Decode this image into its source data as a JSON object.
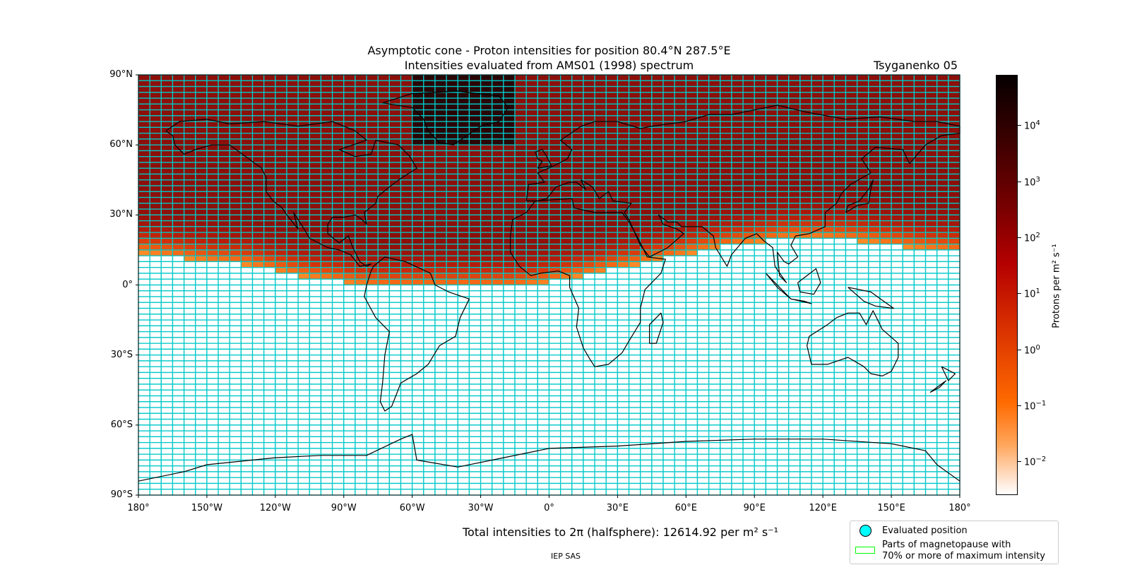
{
  "title_line1": "Asymptotic cone - Proton intensities for position 80.4°N 287.5°E",
  "title_line2": "Intensities evaluated from AMS01 (1998) spectrum",
  "model": "Tsyganenko 05",
  "lat_labels": [
    "90°N",
    "60°N",
    "30°N",
    "0°",
    "30°S",
    "60°S",
    "90°S"
  ],
  "lon_labels": [
    "180°",
    "150°W",
    "120°W",
    "90°W",
    "60°W",
    "30°W",
    "0°",
    "30°E",
    "60°E",
    "90°E",
    "120°E",
    "150°E",
    "180°"
  ],
  "colorbar": {
    "title": "Protons per m² s⁻¹",
    "tick_labels": [
      "10^4",
      "10^3",
      "10^2",
      "10^1",
      "10^0",
      "10^-1",
      "10^-2"
    ],
    "scale": "log",
    "colormap": [
      "#060000",
      "#7a0000",
      "#d83000",
      "#ff6a00",
      "#ffa55a",
      "#ffffff"
    ]
  },
  "total_intensity": {
    "prefix": "Total intensities to 2π (halfsphere): ",
    "value": "12614.92",
    "unit": " per m² s⁻¹"
  },
  "legend": {
    "evaluated": "Evaluated position",
    "magnetopause_line1": "Parts of magnetopause with",
    "magnetopause_line2": "70% or more of maximum intensity"
  },
  "credit": "IEP SAS",
  "map": {
    "grid_color": "#00c8c8",
    "empty_cell_color": "#ffffff",
    "coast_color": "#000000",
    "cell_size_deg": [
      5,
      2.5
    ]
  }
}
